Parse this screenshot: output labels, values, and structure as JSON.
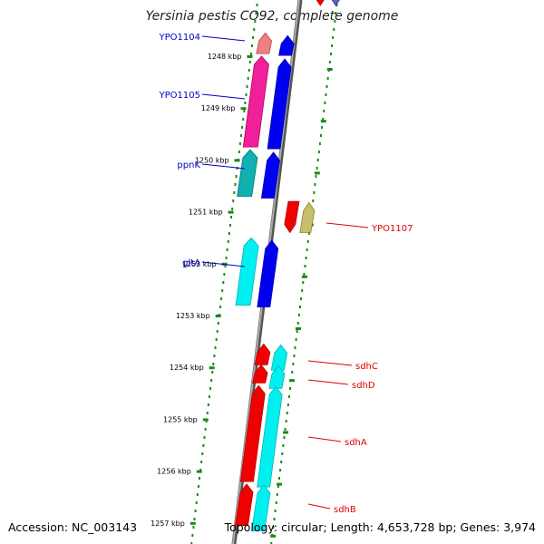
{
  "title": "Yersinia pestis CO92, complete genome",
  "accession": "Accession: NC_003143",
  "topology": "Topology: circular; Length: 4,653,728 bp; Genes: 3,974",
  "colors": {
    "backbone": "#808080",
    "left_gene_label": "#0000c8",
    "right_gene_label": "#e00000",
    "tick": "#1a8a1a",
    "blue": "#0000f0",
    "magenta": "#f0209a",
    "teal": "#10b0b0",
    "cyan": "#00f0f0",
    "red": "#f00000",
    "khaki": "#c8bd6a",
    "salmon": "#f08080",
    "purple": "#6464c8"
  },
  "scale": {
    "unit": "kbp",
    "ticks": [
      {
        "value": 1248,
        "label": "1248 kbp"
      },
      {
        "value": 1249,
        "label": "1249 kbp"
      },
      {
        "value": 1250,
        "label": "1250 kbp"
      },
      {
        "value": 1251,
        "label": "1251 kbp"
      },
      {
        "value": 1252,
        "label": "1252 kbp"
      },
      {
        "value": 1253,
        "label": "1253 kbp"
      },
      {
        "value": 1254,
        "label": "1254 kbp"
      },
      {
        "value": 1255,
        "label": "1255 kbp"
      },
      {
        "value": 1256,
        "label": "1256 kbp"
      },
      {
        "value": 1257,
        "label": "1257 kbp"
      }
    ]
  },
  "genes_left": [
    {
      "name": "YPO1104",
      "start": 1247.55,
      "end": 1247.95,
      "strand": "+"
    },
    {
      "name": "YPO1105",
      "start": 1248.0,
      "end": 1249.75,
      "strand": "+"
    },
    {
      "name": "ppnK",
      "start": 1249.8,
      "end": 1250.7,
      "strand": "+"
    },
    {
      "name": "gltA",
      "start": 1251.5,
      "end": 1252.8,
      "strand": "+"
    }
  ],
  "genes_right": [
    {
      "name": "YPO1107",
      "start": 1250.8,
      "end": 1251.4,
      "strand": "-"
    },
    {
      "name": "sdhC",
      "start": 1253.55,
      "end": 1253.95,
      "strand": "+"
    },
    {
      "name": "sdhD",
      "start": 1253.95,
      "end": 1254.3,
      "strand": "+"
    },
    {
      "name": "sdhA",
      "start": 1254.35,
      "end": 1256.2,
      "strand": "+"
    },
    {
      "name": "sdhB",
      "start": 1256.25,
      "end": 1257.05,
      "strand": "+"
    }
  ]
}
